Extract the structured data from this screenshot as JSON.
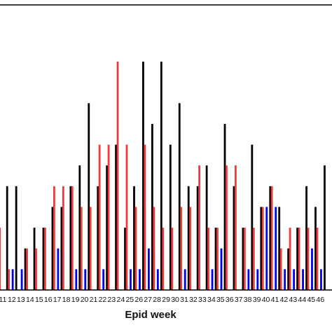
{
  "chart_data": {
    "type": "bar",
    "xlabel": "Epid week",
    "ylabel": "",
    "ylim": [
      0,
      11
    ],
    "grid": false,
    "legend": "none",
    "colors": [
      "#000000",
      "#ee3b3b",
      "#0000ee"
    ],
    "categories": [
      "11",
      "12",
      "13",
      "14",
      "15",
      "16",
      "17",
      "18",
      "19",
      "20",
      "21",
      "22",
      "23",
      "24",
      "25",
      "26",
      "27",
      "28",
      "29",
      "30",
      "31",
      "32",
      "33",
      "34",
      "35",
      "36",
      "37",
      "38",
      "39",
      "40",
      "41",
      "42",
      "43",
      "44",
      "45",
      "46"
    ],
    "series": [
      {
        "values": [
          5,
          5,
          2,
          3,
          3,
          4,
          4,
          5,
          6,
          9,
          5,
          6,
          7,
          3,
          5,
          11,
          8,
          11,
          7,
          9,
          5,
          5,
          6,
          3,
          8,
          5,
          3,
          7,
          4,
          5,
          4,
          2,
          3,
          5,
          4,
          6
        ]
      },
      {
        "values": [
          3,
          1,
          0,
          2,
          2,
          3,
          5,
          5,
          5,
          4,
          4,
          7,
          7,
          11,
          7,
          4,
          7,
          4,
          3,
          3,
          4,
          4,
          6,
          3,
          3,
          6,
          6,
          3,
          3,
          4,
          5,
          2,
          3,
          3,
          3,
          3
        ]
      },
      {
        "values": [
          0,
          1,
          1,
          0,
          0,
          0,
          2,
          0,
          1,
          1,
          0,
          1,
          0,
          0,
          1,
          1,
          2,
          1,
          0,
          0,
          1,
          0,
          0,
          1,
          2,
          0,
          0,
          1,
          1,
          4,
          4,
          1,
          1,
          1,
          2,
          1
        ]
      }
    ]
  }
}
